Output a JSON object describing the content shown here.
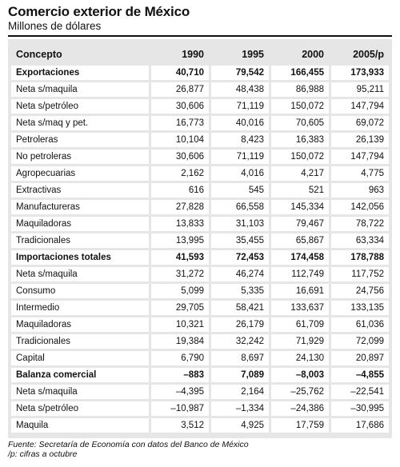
{
  "title": "Comercio exterior de México",
  "subtitle": "Millones de dólares",
  "table": {
    "headers": [
      "Concepto",
      "1990",
      "1995",
      "2000",
      "2005/p"
    ],
    "rows": [
      {
        "label": "Exportaciones",
        "values": [
          "40,710",
          "79,542",
          "166,455",
          "173,933"
        ],
        "bold": true
      },
      {
        "label": "Neta s/maquila",
        "values": [
          "26,877",
          "48,438",
          "86,988",
          "95,211"
        ],
        "bold": false
      },
      {
        "label": "Neta s/petróleo",
        "values": [
          "30,606",
          "71,119",
          "150,072",
          "147,794"
        ],
        "bold": false
      },
      {
        "label": "Neta s/maq y pet.",
        "values": [
          "16,773",
          "40,016",
          "70,605",
          "69,072"
        ],
        "bold": false
      },
      {
        "label": "Petroleras",
        "values": [
          "10,104",
          "8,423",
          "16,383",
          "26,139"
        ],
        "bold": false
      },
      {
        "label": "No petroleras",
        "values": [
          "30,606",
          "71,119",
          "150,072",
          "147,794"
        ],
        "bold": false
      },
      {
        "label": "Agropecuarias",
        "values": [
          "2,162",
          "4,016",
          "4,217",
          "4,775"
        ],
        "bold": false
      },
      {
        "label": "Extractivas",
        "values": [
          "616",
          "545",
          "521",
          "963"
        ],
        "bold": false
      },
      {
        "label": "Manufactureras",
        "values": [
          "27,828",
          "66,558",
          "145,334",
          "142,056"
        ],
        "bold": false
      },
      {
        "label": "Maquiladoras",
        "values": [
          "13,833",
          "31,103",
          "79,467",
          "78,722"
        ],
        "bold": false
      },
      {
        "label": "Tradicionales",
        "values": [
          "13,995",
          "35,455",
          "65,867",
          "63,334"
        ],
        "bold": false
      },
      {
        "label": "Importaciones totales",
        "values": [
          "41,593",
          "72,453",
          "174,458",
          "178,788"
        ],
        "bold": true
      },
      {
        "label": "Neta s/maquila",
        "values": [
          "31,272",
          "46,274",
          "112,749",
          "117,752"
        ],
        "bold": false
      },
      {
        "label": "Consumo",
        "values": [
          "5,099",
          "5,335",
          "16,691",
          "24,756"
        ],
        "bold": false
      },
      {
        "label": "Intermedio",
        "values": [
          "29,705",
          "58,421",
          "133,637",
          "133,135"
        ],
        "bold": false
      },
      {
        "label": "Maquiladoras",
        "values": [
          "10,321",
          "26,179",
          "61,709",
          "61,036"
        ],
        "bold": false
      },
      {
        "label": "Tradicionales",
        "values": [
          "19,384",
          "32,242",
          "71,929",
          "72,099"
        ],
        "bold": false
      },
      {
        "label": "Capital",
        "values": [
          "6,790",
          "8,697",
          "24,130",
          "20,897"
        ],
        "bold": false
      },
      {
        "label": "Balanza comercial",
        "values": [
          "–883",
          "7,089",
          "–8,003",
          "–4,855"
        ],
        "bold": true
      },
      {
        "label": "Neta s/maquila",
        "values": [
          "–4,395",
          "2,164",
          "–25,762",
          "–22,541"
        ],
        "bold": false
      },
      {
        "label": "Neta s/petróleo",
        "values": [
          "–10,987",
          "–1,334",
          "–24,386",
          "–30,995"
        ],
        "bold": false
      },
      {
        "label": "Maquila",
        "values": [
          "3,512",
          "4,925",
          "17,759",
          "17,686"
        ],
        "bold": false
      }
    ]
  },
  "footer": {
    "source": "Fuente: Secretaría de Economía con datos del Banco de México",
    "note": "/p: cifras a octubre"
  }
}
